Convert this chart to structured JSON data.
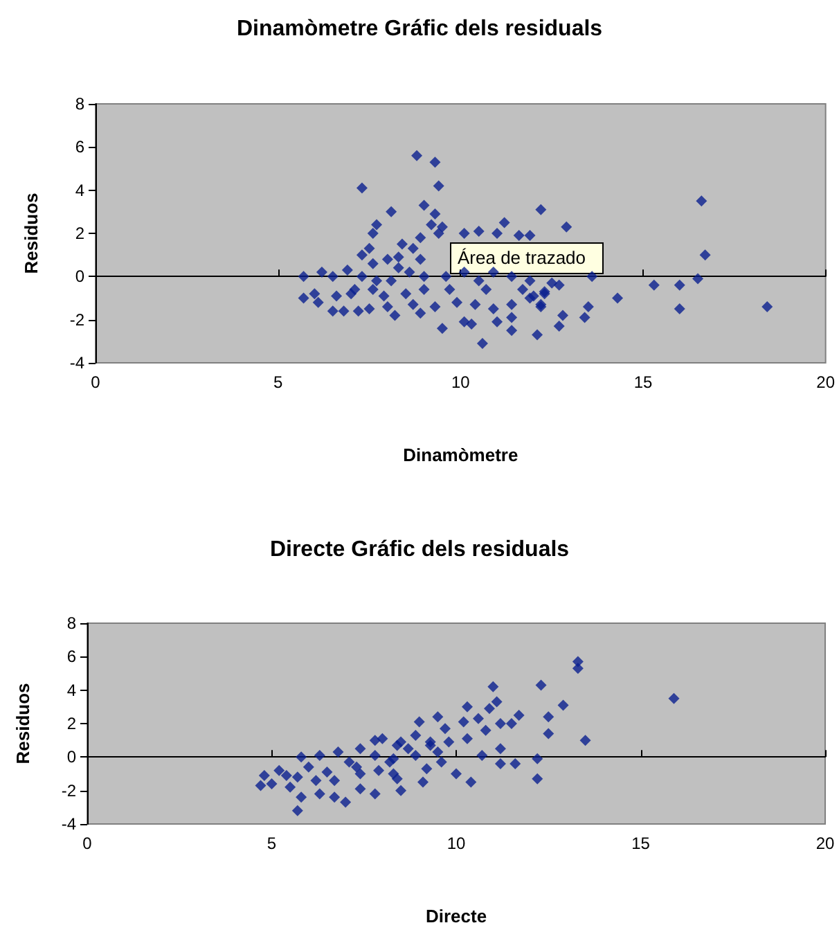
{
  "chart_data": [
    {
      "type": "scatter",
      "title": "Dinamòmetre Gráfic dels residuals",
      "xlabel": "Dinamòmetre",
      "ylabel": "Residuos",
      "annotations": [
        "Área de trazado"
      ],
      "xlim": [
        0,
        20
      ],
      "xticks": [
        0,
        5,
        10,
        15,
        20
      ],
      "ylim": [
        -4,
        8
      ],
      "yticks": [
        -4,
        -2,
        0,
        2,
        4,
        6,
        8
      ],
      "marker": "diamond",
      "series": [
        {
          "color": "#0a1f8f",
          "x": [
            8.8,
            9.3,
            7.3,
            9.4,
            9.0,
            8.1,
            9.3,
            12.2,
            7.7,
            7.6,
            9.2,
            9.5,
            9.4,
            8.9,
            11.2,
            10.1,
            10.5,
            11.0,
            11.6,
            11.9,
            8.4,
            8.7,
            7.5,
            7.3,
            8.0,
            8.3,
            8.9,
            7.6,
            8.3,
            6.9,
            6.2,
            6.5,
            5.7,
            7.3,
            8.1,
            8.6,
            9.0,
            9.6,
            10.1,
            10.5,
            10.9,
            11.4,
            11.9,
            7.6,
            5.7,
            6.0,
            6.1,
            6.6,
            6.5,
            6.8,
            7.0,
            7.2,
            7.5,
            7.9,
            8.0,
            8.2,
            8.5,
            8.7,
            8.9,
            9.0,
            9.3,
            9.5,
            9.7,
            9.9,
            10.1,
            10.3,
            10.4,
            10.6,
            10.7,
            10.9,
            11.0,
            11.4,
            11.4,
            11.4,
            11.7,
            11.9,
            12.2,
            12.1,
            12.3,
            7.7,
            7.1,
            12.9,
            16.6,
            16.7,
            13.6,
            12.5,
            12.7,
            15.3,
            16.0,
            16.5,
            12.0,
            12.3,
            12.2,
            14.3,
            13.5,
            13.4,
            12.8,
            12.7,
            16.0,
            18.4
          ],
          "values": [
            5.6,
            5.3,
            4.1,
            4.2,
            3.3,
            3.0,
            2.9,
            3.1,
            2.4,
            2.0,
            2.4,
            2.3,
            2.0,
            1.8,
            2.5,
            2.0,
            2.1,
            2.0,
            1.9,
            1.9,
            1.5,
            1.3,
            1.3,
            1.0,
            0.8,
            0.9,
            0.8,
            0.6,
            0.4,
            0.3,
            0.2,
            0.0,
            0.0,
            0.0,
            -0.2,
            0.2,
            0.0,
            0.0,
            0.2,
            -0.2,
            0.2,
            0.0,
            -0.2,
            -0.6,
            -1.0,
            -0.8,
            -1.2,
            -0.9,
            -1.6,
            -1.6,
            -0.8,
            -1.6,
            -1.5,
            -0.9,
            -1.4,
            -1.8,
            -0.8,
            -1.3,
            -1.7,
            -0.6,
            -1.4,
            -2.4,
            -0.6,
            -1.2,
            -2.1,
            -2.2,
            -1.3,
            -3.1,
            -0.6,
            -1.5,
            -2.1,
            -1.3,
            -1.9,
            -2.5,
            -0.6,
            -1.0,
            -1.3,
            -2.7,
            -0.7,
            -0.2,
            -0.6,
            2.3,
            3.5,
            1.0,
            0.0,
            -0.3,
            -0.4,
            -0.4,
            -0.4,
            -0.1,
            -0.9,
            -0.8,
            -1.4,
            -1.0,
            -1.4,
            -1.9,
            -1.8,
            -2.3,
            -1.5,
            -1.4
          ]
        }
      ]
    },
    {
      "type": "scatter",
      "title": "Directe Gráfic dels residuals",
      "xlabel": "Directe",
      "ylabel": "Residuos",
      "xlim": [
        0,
        20
      ],
      "xticks": [
        0,
        5,
        10,
        15,
        20
      ],
      "ylim": [
        -4,
        8
      ],
      "yticks": [
        -4,
        -2,
        0,
        2,
        4,
        6,
        8
      ],
      "marker": "diamond",
      "series": [
        {
          "color": "#0a1f8f",
          "x": [
            4.7,
            4.8,
            5.0,
            5.2,
            5.4,
            5.5,
            5.8,
            5.7,
            5.8,
            5.7,
            6.0,
            6.3,
            6.2,
            6.3,
            6.5,
            6.7,
            6.8,
            6.7,
            7.0,
            7.1,
            7.4,
            7.4,
            7.4,
            7.8,
            8.0,
            7.8,
            7.8,
            8.2,
            7.9,
            8.4,
            8.3,
            7.3,
            13.3,
            13.3,
            11.0,
            12.3,
            15.9,
            11.1,
            10.9,
            12.9,
            10.3,
            9.5,
            11.7,
            12.5,
            9.0,
            10.2,
            10.6,
            11.2,
            11.5,
            10.8,
            9.7,
            8.9,
            12.5,
            13.5,
            10.3,
            9.8,
            9.3,
            8.5,
            11.2,
            9.5,
            10.7,
            8.9,
            8.3,
            11.2,
            11.6,
            12.2,
            9.6,
            10.0,
            9.1,
            10.4,
            12.2,
            8.4,
            8.5,
            9.2,
            8.7,
            9.3
          ],
          "values": [
            -1.7,
            -1.1,
            -1.6,
            -0.8,
            -1.1,
            -1.8,
            0.0,
            -1.2,
            -2.4,
            -3.2,
            -0.6,
            0.1,
            -1.4,
            -2.2,
            -0.9,
            -1.4,
            0.3,
            -2.4,
            -2.7,
            -0.3,
            0.5,
            -1.0,
            -1.9,
            1.0,
            1.1,
            -2.2,
            0.1,
            -0.3,
            -0.8,
            0.7,
            -1.0,
            -0.6,
            5.7,
            5.3,
            4.2,
            4.3,
            3.5,
            3.3,
            2.9,
            3.1,
            3.0,
            2.4,
            2.5,
            2.4,
            2.1,
            2.1,
            2.3,
            2.0,
            2.0,
            1.6,
            1.7,
            1.3,
            1.4,
            1.0,
            1.1,
            0.9,
            0.7,
            0.9,
            0.5,
            0.3,
            0.1,
            0.1,
            -0.1,
            -0.4,
            -0.4,
            -0.1,
            -0.3,
            -1.0,
            -1.5,
            -1.5,
            -1.3,
            -1.3,
            -2.0,
            -0.7,
            0.5,
            0.9
          ]
        }
      ]
    }
  ]
}
